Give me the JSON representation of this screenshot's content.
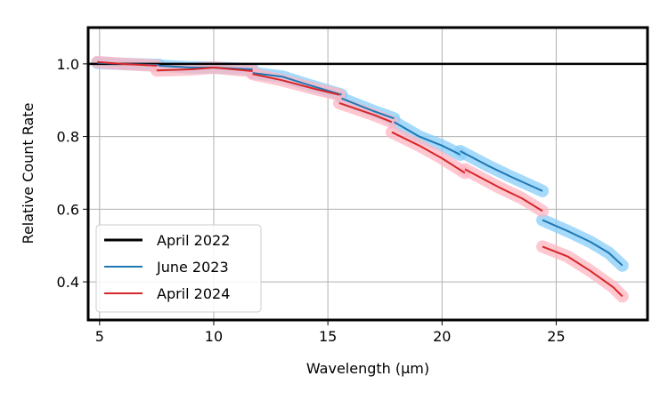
{
  "chart_data": {
    "type": "line",
    "title": "",
    "xlabel": "Wavelength (μm)",
    "ylabel": "Relative Count Rate",
    "xlim": [
      4.5,
      29.0
    ],
    "ylim": [
      0.295,
      1.1
    ],
    "x_ticks": [
      5,
      10,
      15,
      20,
      25
    ],
    "y_ticks": [
      0.4,
      0.6,
      0.8,
      1.0
    ],
    "x_tick_labels": [
      "5",
      "10",
      "15",
      "20",
      "25"
    ],
    "y_tick_labels": [
      "0.4",
      "0.6",
      "0.8",
      "1.0"
    ],
    "grid": true,
    "legend_position": "lower-left",
    "legend": [
      {
        "label": "April 2022",
        "color": "#000000"
      },
      {
        "label": "June 2023",
        "color": "#1f77b4"
      },
      {
        "label": "April 2024",
        "color": "#d62728"
      }
    ],
    "series": [
      {
        "name": "April 2022",
        "color": "#000000",
        "segments": [
          [
            [
              4.5,
              1.0
            ],
            [
              29.0,
              1.0
            ]
          ]
        ]
      },
      {
        "name": "June 2023",
        "color": "#1f77b4",
        "band_color": "#87cefa",
        "segments": [
          [
            [
              4.9,
              1.003
            ],
            [
              6.0,
              1.0
            ],
            [
              7.0,
              0.998
            ],
            [
              7.6,
              0.997
            ]
          ],
          [
            [
              7.6,
              0.995
            ],
            [
              9.0,
              0.99
            ],
            [
              10.0,
              0.99
            ],
            [
              11.0,
              0.987
            ],
            [
              11.7,
              0.985
            ]
          ],
          [
            [
              11.7,
              0.975
            ],
            [
              13.0,
              0.965
            ],
            [
              14.0,
              0.945
            ],
            [
              15.6,
              0.915
            ]
          ],
          [
            [
              15.6,
              0.905
            ],
            [
              17.0,
              0.87
            ],
            [
              17.9,
              0.85
            ]
          ],
          [
            [
              17.9,
              0.84
            ],
            [
              19.0,
              0.8
            ],
            [
              20.0,
              0.775
            ],
            [
              20.8,
              0.75
            ]
          ],
          [
            [
              20.8,
              0.76
            ],
            [
              22.0,
              0.72
            ],
            [
              23.0,
              0.69
            ],
            [
              24.4,
              0.65
            ]
          ],
          [
            [
              24.4,
              0.57
            ],
            [
              25.5,
              0.54
            ],
            [
              26.5,
              0.51
            ],
            [
              27.3,
              0.48
            ],
            [
              27.9,
              0.445
            ]
          ]
        ]
      },
      {
        "name": "April 2024",
        "color": "#d62728",
        "band_color": "#ffb6c1",
        "segments": [
          [
            [
              4.9,
              1.005
            ],
            [
              6.0,
              1.0
            ],
            [
              7.5,
              0.995
            ]
          ],
          [
            [
              7.5,
              0.982
            ],
            [
              9.0,
              0.985
            ],
            [
              10.0,
              0.99
            ],
            [
              11.7,
              0.98
            ]
          ],
          [
            [
              11.7,
              0.972
            ],
            [
              13.0,
              0.955
            ],
            [
              14.5,
              0.93
            ],
            [
              15.5,
              0.915
            ]
          ],
          [
            [
              15.5,
              0.892
            ],
            [
              17.0,
              0.86
            ],
            [
              17.8,
              0.84
            ]
          ],
          [
            [
              17.8,
              0.812
            ],
            [
              19.0,
              0.775
            ],
            [
              20.0,
              0.74
            ],
            [
              21.0,
              0.7
            ]
          ],
          [
            [
              21.0,
              0.71
            ],
            [
              22.5,
              0.66
            ],
            [
              23.5,
              0.63
            ],
            [
              24.4,
              0.595
            ]
          ],
          [
            [
              24.4,
              0.497
            ],
            [
              25.5,
              0.47
            ],
            [
              26.5,
              0.43
            ],
            [
              27.5,
              0.385
            ],
            [
              27.9,
              0.36
            ]
          ]
        ]
      }
    ]
  }
}
